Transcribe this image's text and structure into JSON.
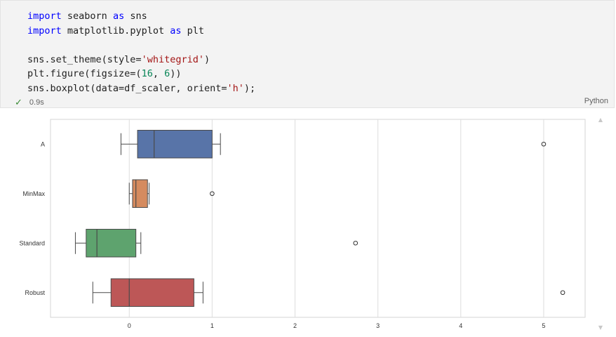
{
  "code_cell": {
    "lines": [
      [
        {
          "t": "import",
          "c": "kw"
        },
        {
          "t": " seaborn "
        },
        {
          "t": "as",
          "c": "kw"
        },
        {
          "t": " sns"
        }
      ],
      [
        {
          "t": "import",
          "c": "kw"
        },
        {
          "t": " matplotlib.pyplot "
        },
        {
          "t": "as",
          "c": "kw"
        },
        {
          "t": " plt"
        }
      ],
      [],
      [
        {
          "t": "sns.set_theme(style="
        },
        {
          "t": "'whitegrid'",
          "c": "str"
        },
        {
          "t": ")"
        }
      ],
      [
        {
          "t": "plt.figure(figsize=("
        },
        {
          "t": "16",
          "c": "num"
        },
        {
          "t": ", "
        },
        {
          "t": "6",
          "c": "num"
        },
        {
          "t": "))"
        }
      ],
      [
        {
          "t": "sns.boxplot(data=df_scaler, orient="
        },
        {
          "t": "'h'",
          "c": "str"
        },
        {
          "t": ");"
        }
      ]
    ],
    "exec_time": "0.9s",
    "language": "Python",
    "status_icon": "check-icon"
  },
  "chart_data": {
    "type": "boxplot",
    "orient": "horizontal",
    "grid": true,
    "xlim": [
      -0.95,
      5.5
    ],
    "xticks": [
      0,
      1,
      2,
      3,
      4,
      5
    ],
    "series": [
      {
        "name": "A",
        "color": "#5874a8",
        "whisker_low": -0.1,
        "q1": 0.1,
        "median": 0.3,
        "q3": 1.0,
        "whisker_high": 1.1,
        "outliers": [
          5.0
        ]
      },
      {
        "name": "MinMax",
        "color": "#d58b5f",
        "whisker_low": 0.0,
        "q1": 0.04,
        "median": 0.08,
        "q3": 0.22,
        "whisker_high": 0.24,
        "outliers": [
          1.0
        ]
      },
      {
        "name": "Standard",
        "color": "#5ea36e",
        "whisker_low": -0.65,
        "q1": -0.52,
        "median": -0.39,
        "q3": 0.08,
        "whisker_high": 0.14,
        "outliers": [
          2.73
        ]
      },
      {
        "name": "Robust",
        "color": "#bd5757",
        "whisker_low": -0.44,
        "q1": -0.22,
        "median": 0.0,
        "q3": 0.78,
        "whisker_high": 0.89,
        "outliers": [
          5.23
        ]
      }
    ]
  }
}
